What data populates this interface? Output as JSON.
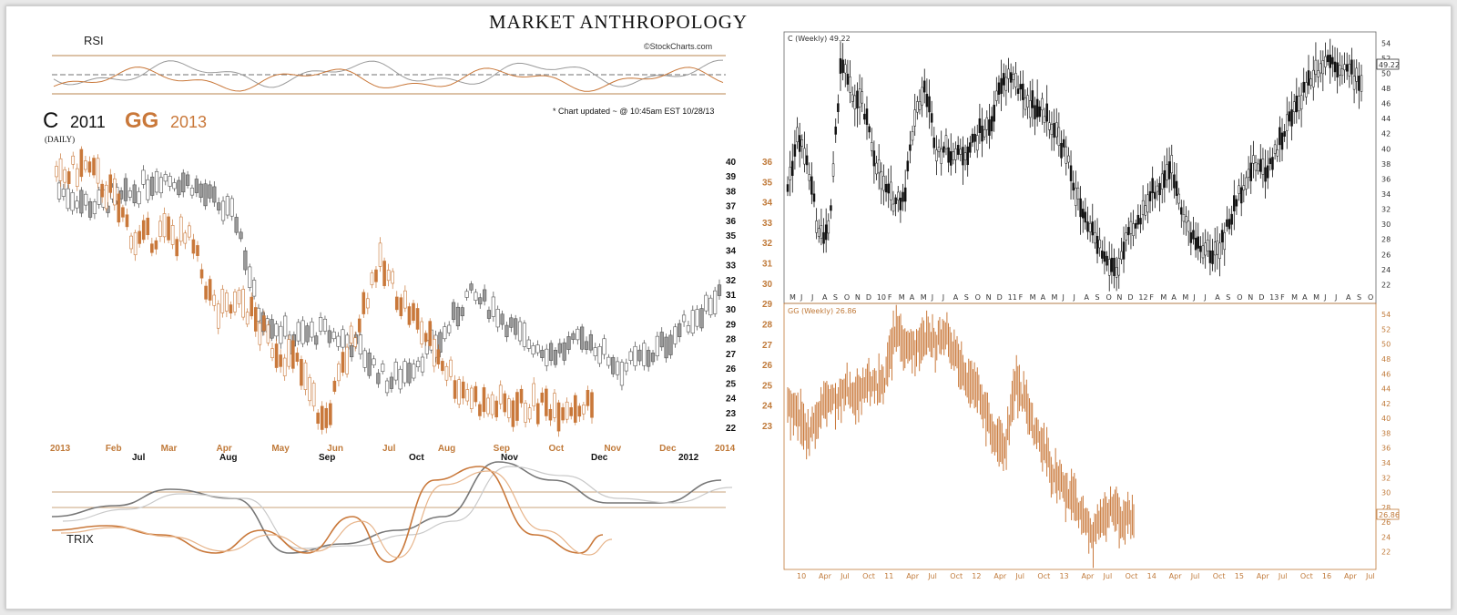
{
  "brand": {
    "title": "MARKET ANTHROPOLOGY",
    "source": "©StockCharts.com"
  },
  "labels": {
    "rsi": "RSI",
    "trix": "TRIX",
    "overlay_c": "C",
    "overlay_c_year": "2011",
    "overlay_gg": "GG",
    "overlay_gg_year": "2013",
    "daily": "(DAILY)",
    "updated": "* Chart updated ~ @ 10:45am EST 10/28/13"
  },
  "colors": {
    "c_series": "#555555",
    "gg_series": "#c9783a",
    "frame": "#b8844f"
  },
  "chart_data": [
    {
      "type": "line",
      "title": "C 2011 GG 2013",
      "subtitle": "(DAILY)",
      "overlay": true,
      "x_top_labels": [
        "2013",
        "Feb",
        "Mar",
        "Apr",
        "May",
        "Jun",
        "Jul",
        "Aug",
        "Sep",
        "Oct",
        "Nov",
        "Dec",
        "2014"
      ],
      "x_bottom_labels": [
        "Jul",
        "Aug",
        "Sep",
        "Oct",
        "Nov",
        "Dec",
        "2012"
      ],
      "y_right_ticks": [
        22,
        23,
        24,
        25,
        26,
        27,
        28,
        29,
        30,
        31,
        32,
        33,
        34,
        35,
        36,
        37,
        38,
        39,
        40
      ],
      "y_left_ticks": [
        23,
        24,
        25,
        26,
        27,
        28,
        29,
        30,
        31,
        32,
        33,
        34,
        35,
        36
      ],
      "series": [
        {
          "name": "C",
          "x": [
            0,
            0.05,
            0.1,
            0.15,
            0.2,
            0.27,
            0.3,
            0.35,
            0.4,
            0.45,
            0.5,
            0.53,
            0.58,
            0.62,
            0.66,
            0.7,
            0.75,
            0.8,
            0.85,
            0.9,
            0.95,
            1.0
          ],
          "values": [
            38,
            37,
            37.5,
            39,
            38.5,
            36,
            30,
            28,
            28.5,
            27.5,
            25,
            26,
            28,
            31,
            30,
            28,
            27,
            28,
            26,
            27,
            29,
            31
          ]
        },
        {
          "name": "GG",
          "x": [
            0,
            0.05,
            0.1,
            0.15,
            0.2,
            0.25,
            0.3,
            0.35,
            0.4,
            0.45,
            0.5,
            0.55,
            0.6,
            0.65,
            0.7,
            0.75,
            0.8
          ],
          "values": [
            35,
            35.8,
            34.5,
            32,
            32.5,
            32,
            28.5,
            29,
            27,
            26,
            23,
            27,
            31,
            29,
            27,
            25,
            24
          ]
        }
      ],
      "rsi": {
        "upper": 70,
        "lower": 30,
        "mid": 50
      },
      "trix": {
        "lines": 4
      }
    },
    {
      "type": "line",
      "title": "C (Weekly) 49.22",
      "last_value": "49.22",
      "x_labels": [
        "M",
        "J",
        "J",
        "A",
        "S",
        "O",
        "N",
        "D",
        "10",
        "F",
        "M",
        "A",
        "M",
        "J",
        "J",
        "A",
        "S",
        "O",
        "N",
        "D",
        "11",
        "F",
        "M",
        "A",
        "M",
        "J",
        "J",
        "A",
        "S",
        "O",
        "N",
        "D",
        "12",
        "F",
        "M",
        "A",
        "M",
        "J",
        "J",
        "A",
        "S",
        "O",
        "N",
        "D",
        "13",
        "F",
        "M",
        "A",
        "M",
        "J",
        "J",
        "A",
        "S",
        "O"
      ],
      "y_ticks": [
        22,
        24,
        26,
        28,
        30,
        32,
        34,
        36,
        38,
        40,
        42,
        44,
        46,
        48,
        50,
        52,
        54
      ],
      "ylim": [
        20,
        55
      ],
      "values": [
        35,
        42,
        37,
        28,
        30,
        52,
        47,
        46,
        40,
        35,
        33,
        34,
        45,
        48,
        40,
        40,
        39,
        40,
        42,
        43,
        48,
        50,
        47,
        46,
        45,
        43,
        40,
        35,
        30,
        28,
        25,
        24,
        28,
        30,
        34,
        35,
        38,
        33,
        28,
        27,
        26,
        28,
        32,
        36,
        38,
        37,
        40,
        43,
        46,
        49,
        51,
        52,
        51,
        50,
        49
      ]
    },
    {
      "type": "line",
      "title": "GG (Weekly) 26.86",
      "last_value": "26.86",
      "x_labels": [
        "10",
        "Apr",
        "Jul",
        "Oct",
        "11",
        "Apr",
        "Jul",
        "Oct",
        "12",
        "Apr",
        "Jul",
        "Oct",
        "13",
        "Apr",
        "Jul",
        "Oct",
        "14",
        "Apr",
        "Jul",
        "Oct",
        "15",
        "Apr",
        "Jul",
        "Oct",
        "16",
        "Apr",
        "Jul"
      ],
      "y_ticks": [
        22,
        24,
        26,
        28,
        30,
        32,
        34,
        36,
        38,
        40,
        42,
        44,
        46,
        48,
        50,
        52,
        54
      ],
      "ylim": [
        20,
        55
      ],
      "values": [
        42,
        40,
        38,
        40,
        43,
        42,
        44,
        43,
        45,
        44,
        46,
        52,
        50,
        49,
        51,
        50,
        52,
        49,
        46,
        44,
        41,
        37,
        36,
        45,
        43,
        38,
        36,
        32,
        30,
        29,
        26,
        24,
        27,
        28,
        26,
        27
      ]
    }
  ]
}
